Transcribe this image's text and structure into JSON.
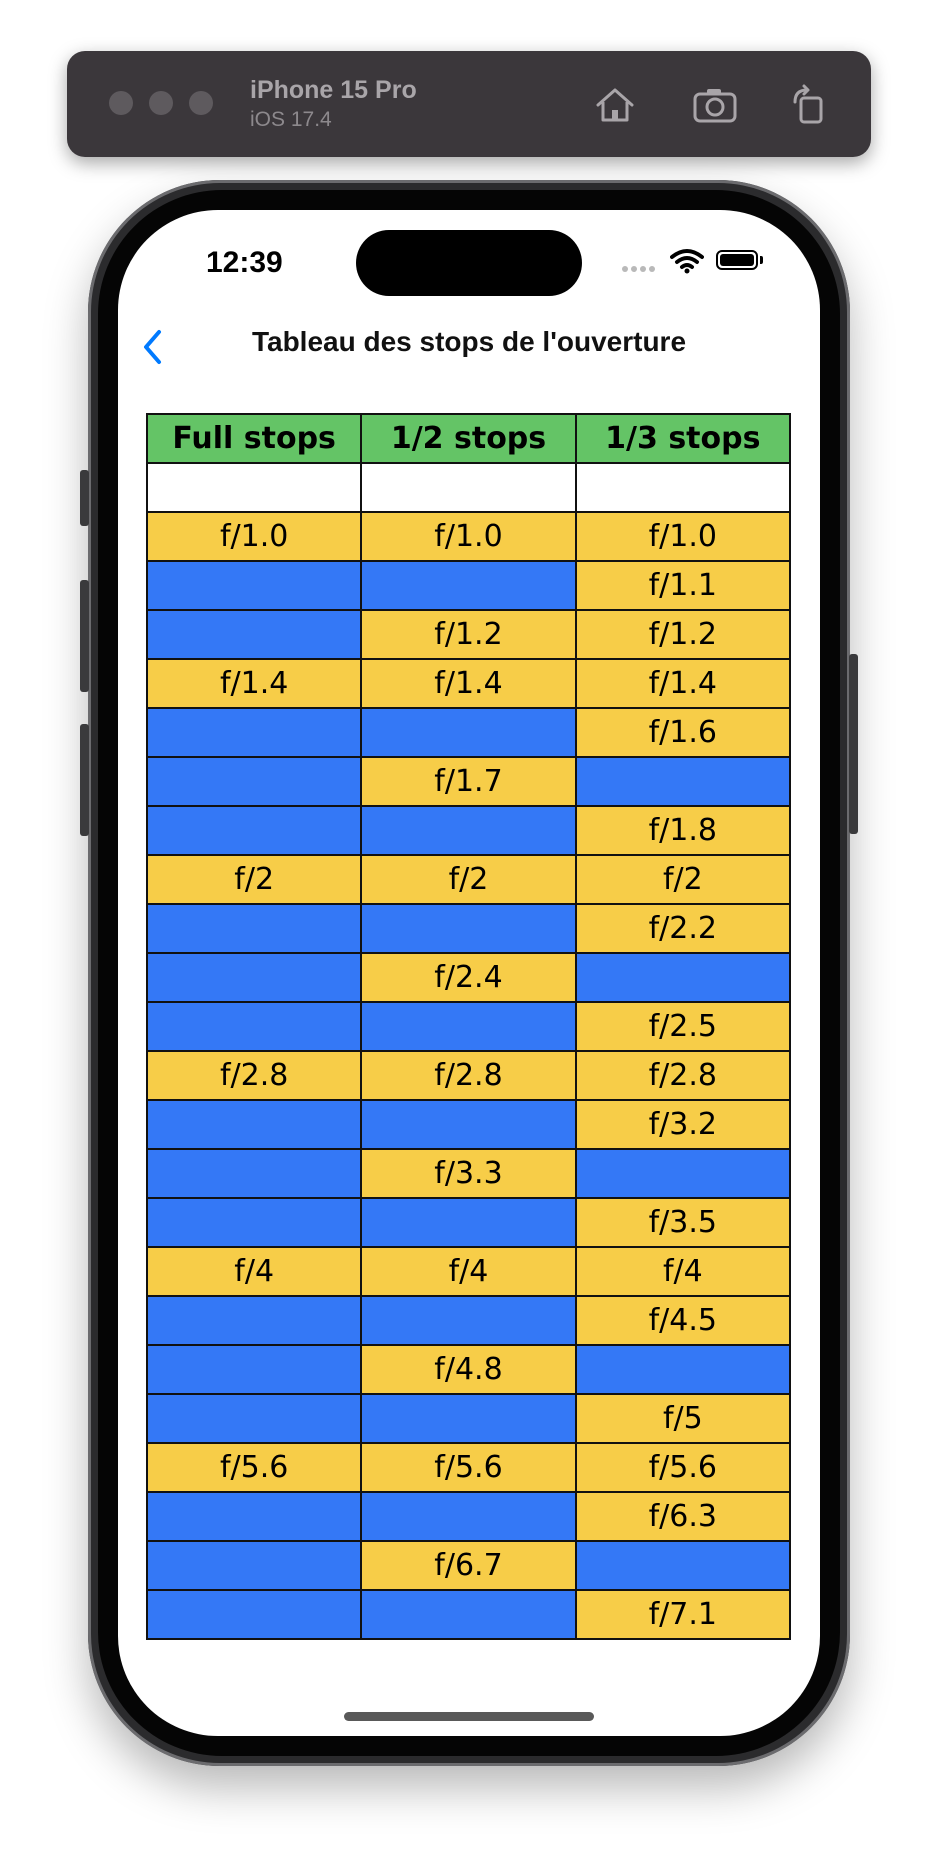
{
  "simulator": {
    "device": "iPhone 15 Pro",
    "os": "iOS 17.4"
  },
  "status_bar": {
    "time": "12:39"
  },
  "nav": {
    "back_icon": "chevron-left-icon",
    "title": "Tableau des stops de l'ouverture"
  },
  "colors": {
    "header_green": "#64c466",
    "stop_yellow": "#f7cd48",
    "gap_blue": "#3478f6",
    "ios_blue": "#007aff"
  },
  "table": {
    "headers": [
      "Full stops",
      "1/2 stops",
      "1/3 stops"
    ],
    "rows": [
      [
        "",
        "",
        ""
      ],
      [
        "f/1.0",
        "f/1.0",
        "f/1.0"
      ],
      [
        "",
        "",
        "f/1.1"
      ],
      [
        "",
        "f/1.2",
        "f/1.2"
      ],
      [
        "f/1.4",
        "f/1.4",
        "f/1.4"
      ],
      [
        "",
        "",
        "f/1.6"
      ],
      [
        "",
        "f/1.7",
        ""
      ],
      [
        "",
        "",
        "f/1.8"
      ],
      [
        "f/2",
        "f/2",
        "f/2"
      ],
      [
        "",
        "",
        "f/2.2"
      ],
      [
        "",
        "f/2.4",
        ""
      ],
      [
        "",
        "",
        "f/2.5"
      ],
      [
        "f/2.8",
        "f/2.8",
        "f/2.8"
      ],
      [
        "",
        "",
        "f/3.2"
      ],
      [
        "",
        "f/3.3",
        ""
      ],
      [
        "",
        "",
        "f/3.5"
      ],
      [
        "f/4",
        "f/4",
        "f/4"
      ],
      [
        "",
        "",
        "f/4.5"
      ],
      [
        "",
        "f/4.8",
        ""
      ],
      [
        "",
        "",
        "f/5"
      ],
      [
        "f/5.6",
        "f/5.6",
        "f/5.6"
      ],
      [
        "",
        "",
        "f/6.3"
      ],
      [
        "",
        "f/6.7",
        ""
      ],
      [
        "",
        "",
        "f/7.1"
      ]
    ]
  }
}
